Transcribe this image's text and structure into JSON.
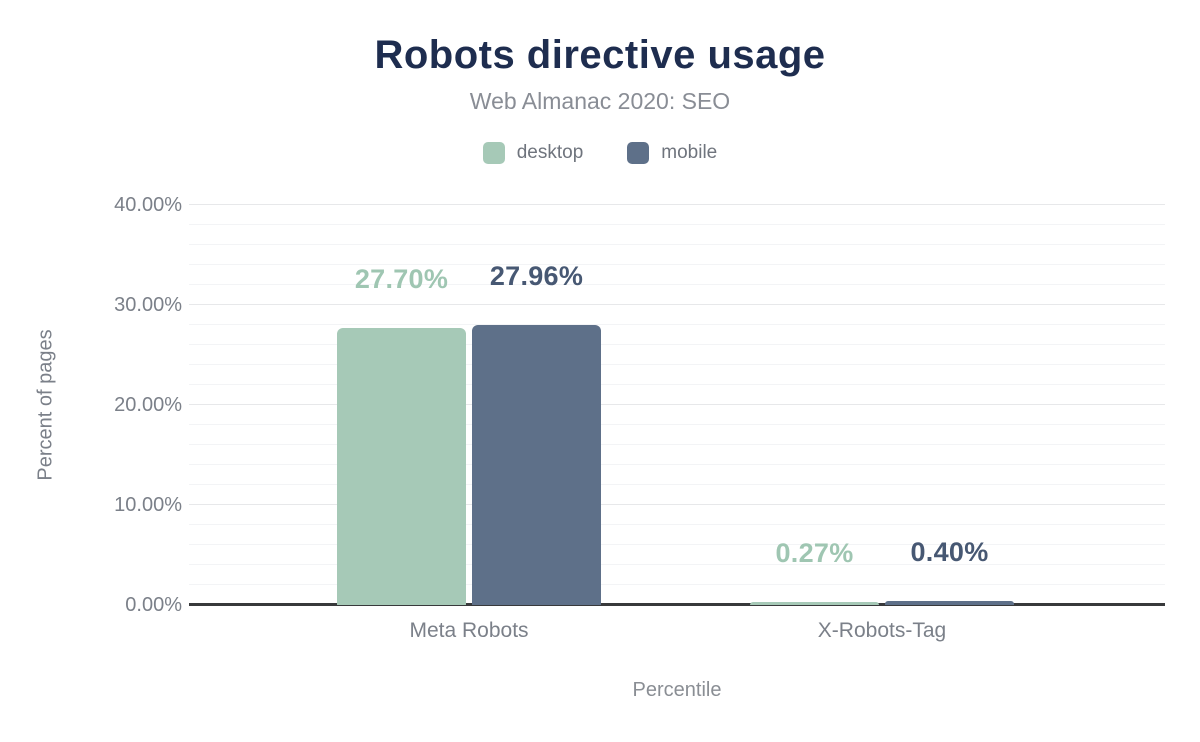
{
  "chart_data": {
    "type": "bar",
    "title": "Robots directive usage",
    "subtitle": "Web Almanac 2020: SEO",
    "categories": [
      "Meta Robots",
      "X-Robots-Tag"
    ],
    "series": [
      {
        "name": "desktop",
        "color": "#a6c9b7",
        "label_color": "#9fc6b2",
        "values": [
          27.7,
          0.27
        ],
        "labels": [
          "27.70%",
          "0.27%"
        ]
      },
      {
        "name": "mobile",
        "color": "#5e7089",
        "label_color": "#475873",
        "values": [
          27.96,
          0.4
        ],
        "labels": [
          "27.96%",
          "0.40%"
        ]
      }
    ],
    "xlabel": "Percentile",
    "ylabel": "Percent of pages",
    "ylim": [
      0,
      40
    ],
    "ytick_step": 10,
    "yticks": [
      "0.00%",
      "10.00%",
      "20.00%",
      "30.00%",
      "40.00%"
    ],
    "minor_grid_step": 2,
    "grid": true,
    "legend_position": "top",
    "colors": {
      "title": "#1e2d4f",
      "subtitle": "#898d95",
      "axis_text": "#7b8089",
      "axis_line": "#38393b"
    }
  }
}
